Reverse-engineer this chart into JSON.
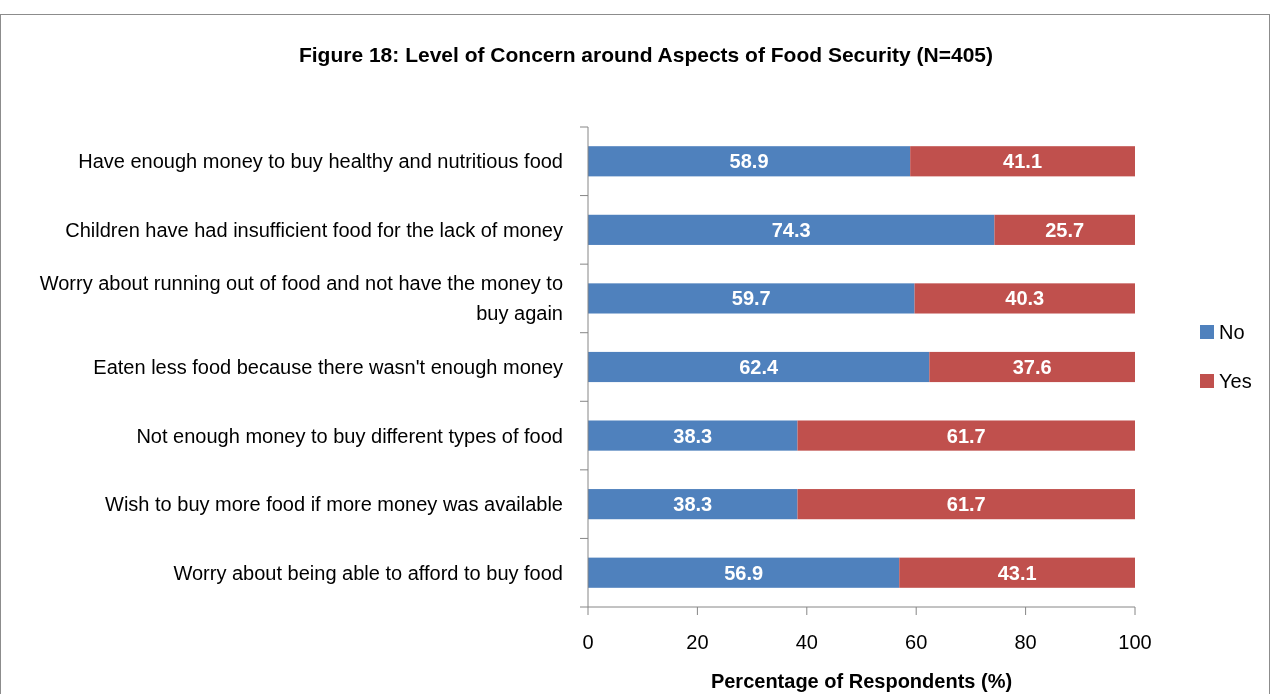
{
  "chart_data": {
    "type": "bar",
    "orientation": "horizontal",
    "stacked": true,
    "title": "Figure 18: Level of Concern around Aspects of Food Security (N=405)",
    "xlabel": "Percentage of Respondents (%)",
    "categories": [
      "Have enough money to buy healthy and nutritious food",
      "Children have had insufficient food for the lack of money",
      "Worry about running out of food and not have the money to buy again",
      "Eaten less food because there wasn't enough money",
      "Not enough money to buy different types of food",
      "Wish to buy more food if more money was available",
      "Worry about being able to afford to buy food"
    ],
    "series": [
      {
        "name": "No",
        "color": "#4f81bd",
        "values": [
          58.9,
          74.3,
          59.7,
          62.4,
          38.3,
          38.3,
          56.9
        ]
      },
      {
        "name": "Yes",
        "color": "#c0504d",
        "values": [
          41.1,
          25.7,
          40.3,
          37.6,
          61.7,
          61.7,
          43.1
        ]
      }
    ],
    "xlim": [
      0,
      100
    ],
    "xticks": [
      0,
      20,
      40,
      60,
      80,
      100
    ],
    "data_labels": true,
    "legend": "right",
    "grid": false
  }
}
